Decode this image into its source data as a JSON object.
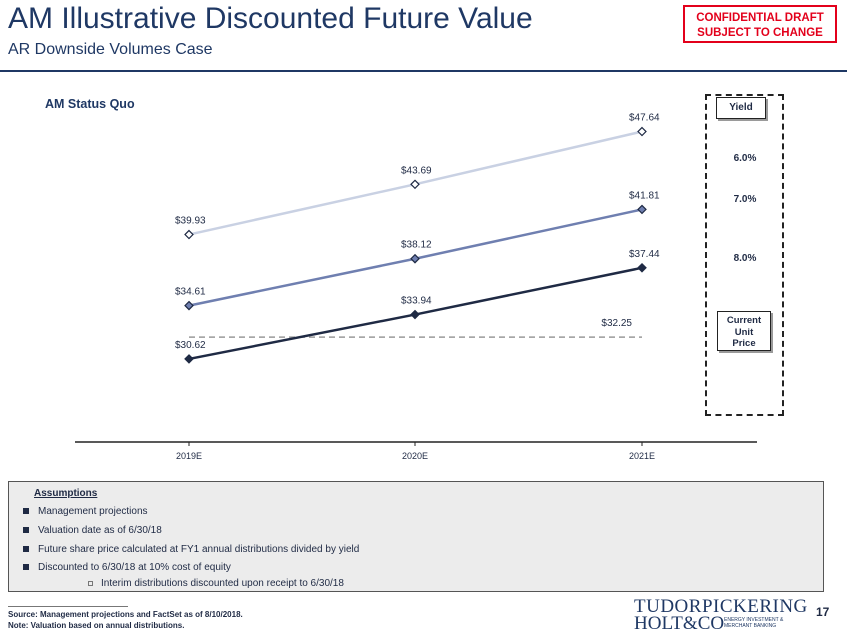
{
  "header": {
    "title": "AM Illustrative Discounted Future Value",
    "subtitle": "AR Downside Volumes Case",
    "confidential_line1": "CONFIDENTIAL DRAFT",
    "confidential_line2": "SUBJECT TO CHANGE"
  },
  "chart_data": {
    "type": "line",
    "title": "AM Status Quo",
    "categories": [
      "2019E",
      "2020E",
      "2021E"
    ],
    "ylim": [
      25,
      50
    ],
    "grid": false,
    "legend": "right",
    "series": [
      {
        "name": "6.0%",
        "values": [
          39.93,
          43.69,
          47.64
        ],
        "labels": [
          "$39.93",
          "$43.69",
          "$47.64"
        ],
        "color": "#c9d1e3"
      },
      {
        "name": "7.0%",
        "values": [
          34.61,
          38.12,
          41.81
        ],
        "labels": [
          "$34.61",
          "$38.12",
          "$41.81"
        ],
        "color": "#6f7fb0"
      },
      {
        "name": "8.0%",
        "values": [
          30.62,
          33.94,
          37.44
        ],
        "labels": [
          "$30.62",
          "$33.94",
          "$37.44"
        ],
        "color": "#1f2a44"
      }
    ],
    "reference": {
      "name": "Current Unit Price",
      "value": 32.25,
      "label": "$32.25",
      "color": "#999999"
    }
  },
  "legend": {
    "header": "Yield",
    "items": [
      "6.0%",
      "7.0%",
      "8.0%"
    ],
    "current_line1": "Current",
    "current_line2": "Unit",
    "current_line3": "Price"
  },
  "assumptions": {
    "title": "Assumptions",
    "bullets": [
      "Management projections",
      "Valuation date as of 6/30/18",
      "Future share price calculated at FY1 annual distributions divided by yield",
      "Discounted to 6/30/18 at 10% cost of equity"
    ],
    "sub_bullet": "Interim distributions discounted upon receipt to 6/30/18"
  },
  "footer": {
    "source": "Source: Management projections and FactSet as of 8/10/2018.",
    "note": "Note: Valuation based on annual distributions.",
    "logo_line1": "TUDORPICKERING",
    "logo_line2": "HOLT&CO",
    "logo_tag1": "ENERGY INVESTMENT &",
    "logo_tag2": "MERCHANT BANKING",
    "page": "17"
  },
  "colors": {
    "brand": "#1f3864",
    "alert": "#e3001b"
  }
}
